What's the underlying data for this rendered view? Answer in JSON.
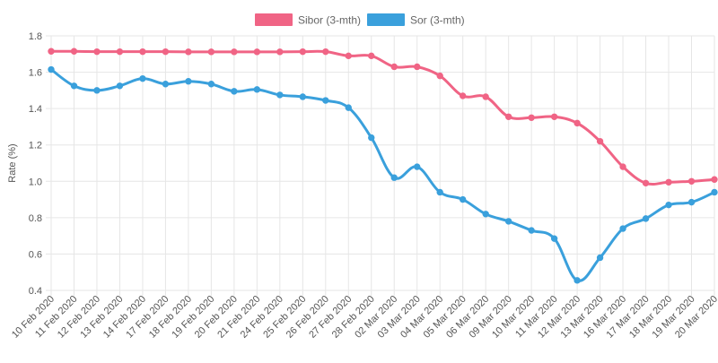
{
  "chart_data": {
    "type": "line",
    "ylabel": "Rate (%)",
    "ylim": [
      0.4,
      1.8
    ],
    "yticks": [
      "1.8",
      "1.6",
      "1.4",
      "1.2",
      "1.0",
      "0.8",
      "0.6",
      "0.4"
    ],
    "grid": true,
    "legend_position": "top-center",
    "categories": [
      "10 Feb 2020",
      "11 Feb 2020",
      "12 Feb 2020",
      "13 Feb 2020",
      "14 Feb 2020",
      "17 Feb 2020",
      "18 Feb 2020",
      "19 Feb 2020",
      "20 Feb 2020",
      "21 Feb 2020",
      "24 Feb 2020",
      "25 Feb 2020",
      "26 Feb 2020",
      "27 Feb 2020",
      "28 Feb 2020",
      "02 Mar 2020",
      "03 Mar 2020",
      "04 Mar 2020",
      "05 Mar 2020",
      "06 Mar 2020",
      "09 Mar 2020",
      "10 Mar 2020",
      "11 Mar 2020",
      "12 Mar 2020",
      "13 Mar 2020",
      "16 Mar 2020",
      "17 Mar 2020",
      "18 Mar 2020",
      "19 Mar 2020",
      "20 Mar 2020"
    ],
    "series": [
      {
        "name": "Sibor (3-mth)",
        "color": "#f06485",
        "values": [
          1.715,
          1.715,
          1.713,
          1.713,
          1.713,
          1.713,
          1.712,
          1.712,
          1.712,
          1.712,
          1.712,
          1.713,
          1.713,
          1.69,
          1.69,
          1.63,
          1.63,
          1.58,
          1.47,
          1.465,
          1.355,
          1.35,
          1.355,
          1.32,
          1.22,
          1.08,
          0.99,
          0.995,
          1.0,
          1.01
        ]
      },
      {
        "name": "Sor (3-mth)",
        "color": "#3aa0dc",
        "values": [
          1.615,
          1.525,
          1.5,
          1.525,
          1.565,
          1.535,
          1.55,
          1.535,
          1.495,
          1.505,
          1.475,
          1.465,
          1.445,
          1.405,
          1.24,
          1.02,
          1.08,
          0.94,
          0.9,
          0.82,
          0.78,
          0.73,
          0.685,
          0.455,
          0.58,
          0.74,
          0.795,
          0.87,
          0.885,
          0.94
        ]
      }
    ]
  }
}
